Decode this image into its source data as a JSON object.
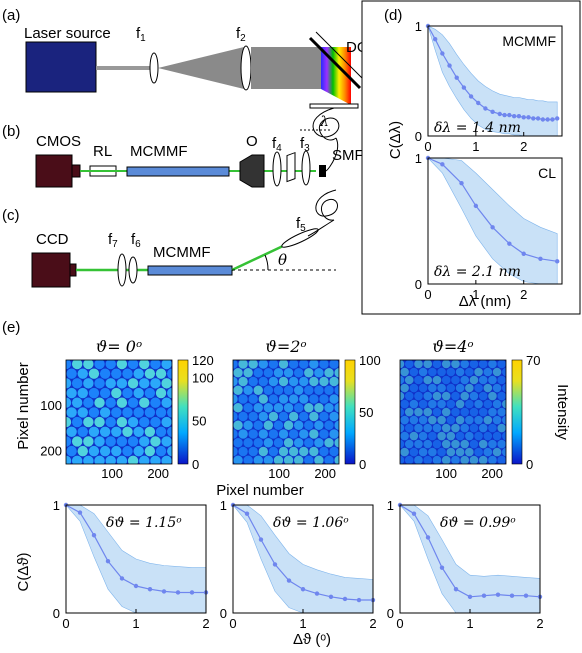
{
  "panel_labels": {
    "a": "(a)",
    "b": "(b)",
    "c": "(c)",
    "d": "(d)",
    "e": "(e)"
  },
  "setup": {
    "laser_source": "Laser source",
    "f1": "f",
    "f1_sub": "1",
    "f2": "f",
    "f2_sub": "2",
    "dg": "DG",
    "lambda": "λ",
    "cmos": "CMOS",
    "rl": "RL",
    "mcmmf_b": "MCMMF",
    "objective": "O",
    "f4": "f",
    "f4_sub": "4",
    "f3": "f",
    "f3_sub": "3",
    "smf": "SMF",
    "ccd": "CCD",
    "f7": "f",
    "f7_sub": "7",
    "f6": "f",
    "f6_sub": "6",
    "mcmmf_c": "MCMMF",
    "f5": "f",
    "f5_sub": "5",
    "theta": "θ"
  },
  "colors": {
    "laser": "#1a237e",
    "camera": "#4a0d18",
    "fiber": "#5b8bd8",
    "green_beam": "#35c235",
    "series": "#6f86ee",
    "band": "#bfdcf6"
  },
  "images": [
    {
      "title": "ϑ= 0ᵒ",
      "cbar_max": 120,
      "cbar_ticks": [
        "120",
        "100",
        "50",
        "0"
      ]
    },
    {
      "title": "ϑ=2ᵒ",
      "cbar_max": 100,
      "cbar_ticks": [
        "100",
        "50",
        "0"
      ]
    },
    {
      "title": "ϑ=4ᵒ",
      "cbar_max": 70,
      "cbar_ticks": [
        "70",
        "0"
      ]
    }
  ],
  "images_axis": {
    "ylabel": "Pixel number",
    "xlabel": "Pixel number",
    "yticks": [
      "100",
      "200"
    ],
    "xticks": [
      "100",
      "200"
    ],
    "intensity_label": "Intensity"
  },
  "chart_data": [
    {
      "type": "line",
      "panel": "d-top",
      "annotation": "MCMMF",
      "resolution_label": "δλ = 1.4 nm",
      "ylabel": "C(Δλ)",
      "xlim": [
        0,
        2.8
      ],
      "ylim": [
        0,
        1
      ],
      "xticks": [
        0,
        1,
        2
      ],
      "yticks": [
        0,
        1
      ],
      "x": [
        0,
        0.15,
        0.3,
        0.45,
        0.6,
        0.75,
        0.9,
        1.05,
        1.2,
        1.35,
        1.5,
        1.6,
        1.7,
        1.8,
        1.9,
        2.0,
        2.1,
        2.2,
        2.3,
        2.4,
        2.5,
        2.6,
        2.7
      ],
      "y": [
        1.0,
        0.88,
        0.75,
        0.64,
        0.53,
        0.44,
        0.36,
        0.3,
        0.25,
        0.22,
        0.2,
        0.19,
        0.19,
        0.18,
        0.18,
        0.17,
        0.17,
        0.16,
        0.16,
        0.15,
        0.15,
        0.15,
        0.16
      ],
      "band_lo": [
        1.0,
        0.78,
        0.58,
        0.45,
        0.34,
        0.24,
        0.16,
        0.1,
        0.06,
        0.04,
        0.03,
        0.02,
        0.02,
        0.01,
        0.01,
        0.0,
        0.0,
        0.0,
        0.0,
        0.0,
        0.0,
        0.0,
        0.0
      ],
      "band_hi": [
        1.0,
        0.97,
        0.92,
        0.84,
        0.74,
        0.65,
        0.57,
        0.5,
        0.45,
        0.41,
        0.38,
        0.37,
        0.36,
        0.35,
        0.35,
        0.34,
        0.33,
        0.33,
        0.32,
        0.32,
        0.31,
        0.31,
        0.31
      ]
    },
    {
      "type": "line",
      "panel": "d-bottom",
      "annotation": "CL",
      "resolution_label": "δλ = 2.1 nm",
      "xlabel": "Δλ (nm)",
      "xlim": [
        0,
        2.8
      ],
      "ylim": [
        0,
        1
      ],
      "xticks": [
        0,
        1,
        2
      ],
      "yticks": [
        0,
        1
      ],
      "x": [
        0,
        0.3,
        0.7,
        1.0,
        1.35,
        1.7,
        2.0,
        2.35,
        2.7
      ],
      "y": [
        1.0,
        0.95,
        0.8,
        0.62,
        0.45,
        0.32,
        0.24,
        0.2,
        0.18
      ],
      "band_lo": [
        1.0,
        0.88,
        0.6,
        0.38,
        0.2,
        0.08,
        0.02,
        0.0,
        0.0
      ],
      "band_hi": [
        1.0,
        1.0,
        0.98,
        0.88,
        0.75,
        0.62,
        0.52,
        0.45,
        0.4
      ]
    },
    {
      "type": "line",
      "panel": "e-1",
      "resolution_label": "δϑ = 1.15ᵒ",
      "ylabel": "C(Δϑ)",
      "xlim": [
        0,
        2
      ],
      "ylim": [
        0,
        1
      ],
      "xticks": [
        0,
        1,
        2
      ],
      "yticks": [
        0,
        1
      ],
      "x": [
        0,
        0.2,
        0.4,
        0.6,
        0.8,
        1.0,
        1.2,
        1.4,
        1.6,
        1.8,
        2.0
      ],
      "y": [
        1.0,
        0.93,
        0.72,
        0.48,
        0.32,
        0.25,
        0.22,
        0.2,
        0.19,
        0.19,
        0.19
      ],
      "band_lo": [
        1.0,
        0.85,
        0.52,
        0.22,
        0.06,
        0.0,
        0.0,
        0.0,
        0.0,
        0.0,
        0.0
      ],
      "band_hi": [
        1.0,
        1.0,
        0.92,
        0.75,
        0.58,
        0.5,
        0.46,
        0.44,
        0.43,
        0.42,
        0.42
      ]
    },
    {
      "type": "line",
      "panel": "e-2",
      "resolution_label": "δϑ = 1.06ᵒ",
      "xlim": [
        0,
        2
      ],
      "ylim": [
        0,
        1
      ],
      "xticks": [
        0,
        1,
        2
      ],
      "yticks": [
        0,
        1
      ],
      "x": [
        0,
        0.2,
        0.4,
        0.6,
        0.8,
        1.0,
        1.2,
        1.4,
        1.6,
        1.8,
        2.0
      ],
      "y": [
        1.0,
        0.92,
        0.68,
        0.45,
        0.3,
        0.22,
        0.18,
        0.15,
        0.13,
        0.12,
        0.12
      ],
      "band_lo": [
        1.0,
        0.84,
        0.5,
        0.2,
        0.05,
        0.0,
        0.0,
        0.0,
        0.0,
        0.0,
        0.0
      ],
      "band_hi": [
        1.0,
        1.0,
        0.9,
        0.72,
        0.55,
        0.45,
        0.4,
        0.36,
        0.33,
        0.32,
        0.31
      ]
    },
    {
      "type": "line",
      "panel": "e-3",
      "resolution_label": "δϑ = 0.99ᵒ",
      "xlim": [
        0,
        2
      ],
      "ylim": [
        0,
        1
      ],
      "xticks": [
        0,
        1,
        2
      ],
      "yticks": [
        0,
        1
      ],
      "x": [
        0,
        0.2,
        0.4,
        0.6,
        0.8,
        1.0,
        1.2,
        1.4,
        1.6,
        1.8,
        2.0
      ],
      "y": [
        1.0,
        0.92,
        0.7,
        0.42,
        0.22,
        0.15,
        0.16,
        0.17,
        0.16,
        0.16,
        0.15
      ],
      "band_lo": [
        1.0,
        0.85,
        0.5,
        0.18,
        0.0,
        0.0,
        0.0,
        0.0,
        0.0,
        0.0,
        0.0
      ],
      "band_hi": [
        1.0,
        1.0,
        0.9,
        0.68,
        0.45,
        0.35,
        0.34,
        0.35,
        0.34,
        0.33,
        0.32
      ]
    }
  ],
  "shared_x_label_e": "Δϑ (ᵒ)"
}
